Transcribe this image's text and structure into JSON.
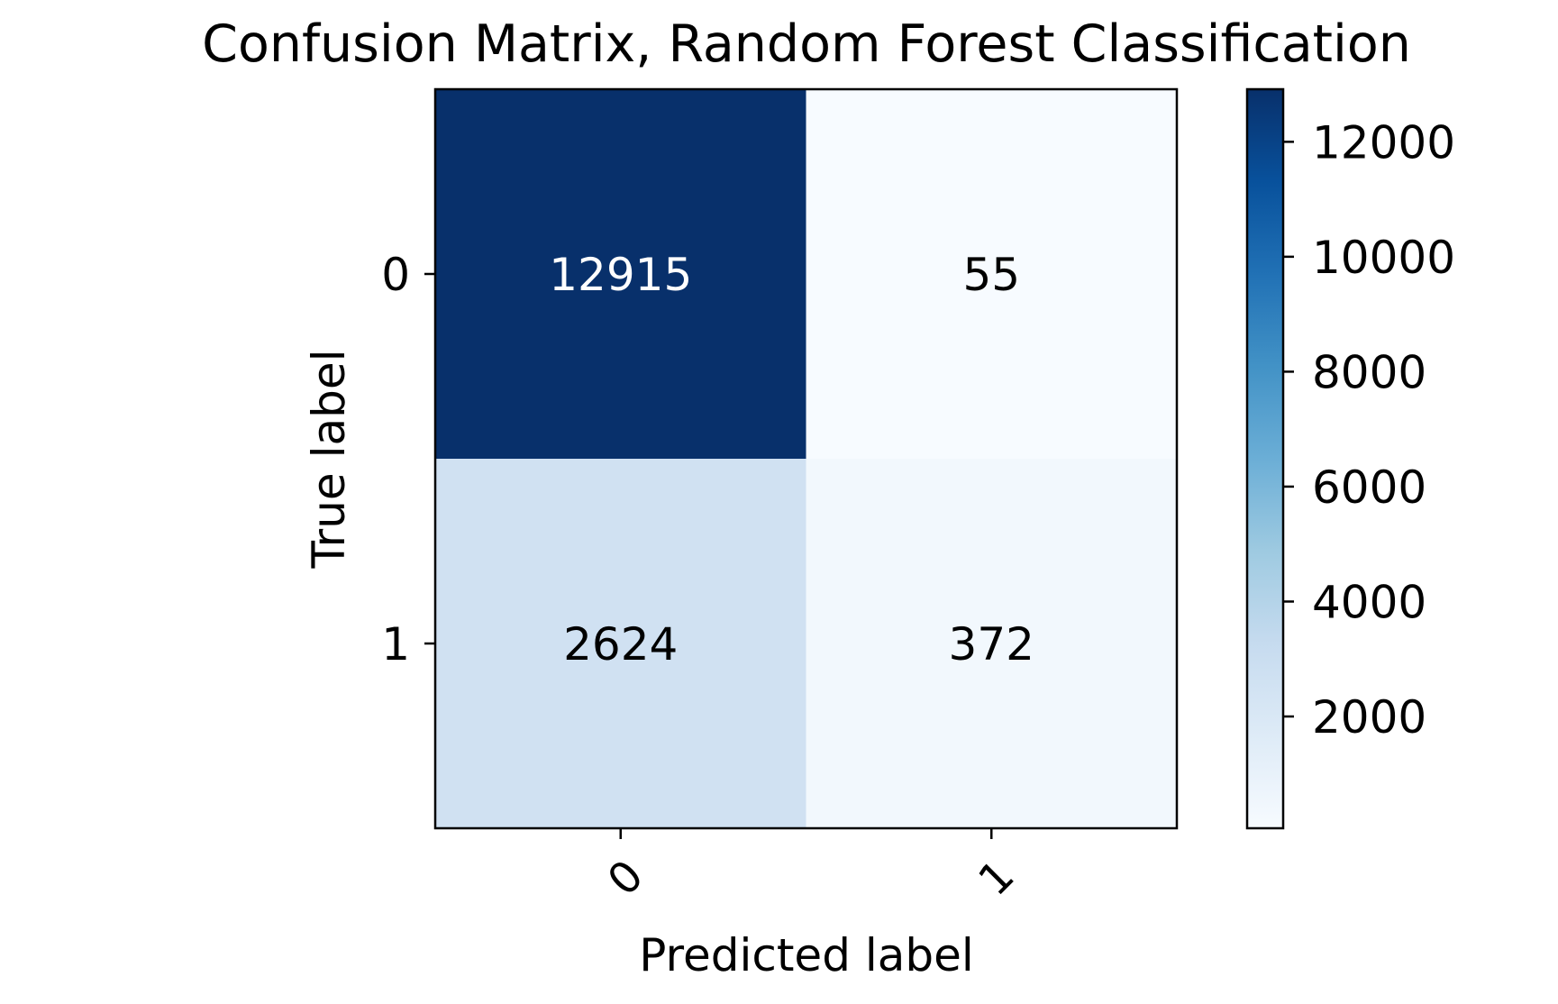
{
  "chart_data": {
    "type": "heatmap",
    "title": "Confusion Matrix, Random Forest Classification",
    "xlabel": "Predicted label",
    "ylabel": "True label",
    "x_tick_labels": [
      "0",
      "1"
    ],
    "y_tick_labels": [
      "0",
      "1"
    ],
    "matrix": [
      [
        12915,
        55
      ],
      [
        2624,
        372
      ]
    ],
    "colormap": "Blues",
    "colorbar": {
      "min": 55,
      "max": 12915,
      "ticks": [
        2000,
        4000,
        6000,
        8000,
        10000,
        12000
      ]
    },
    "text_color_dark": "#000000",
    "text_color_light": "#ffffff"
  }
}
